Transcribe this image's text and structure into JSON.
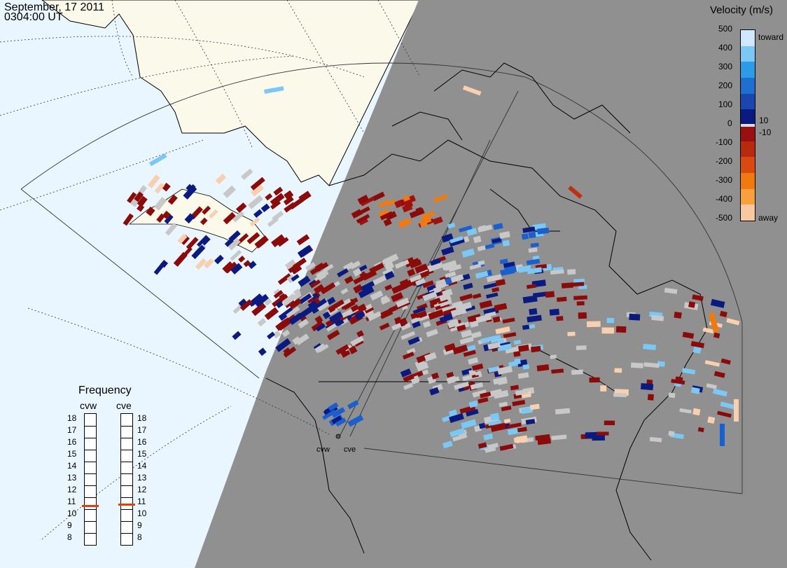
{
  "header": {
    "date": "September, 17 2011",
    "time": "0304:00 UT"
  },
  "velocity_legend": {
    "title": "Velocity (m/s)",
    "ticks": [
      "500",
      "400",
      "300",
      "200",
      "100",
      "10",
      "0",
      "-10",
      "-100",
      "-200",
      "-300",
      "-400",
      "-500"
    ],
    "toward_label": "toward",
    "away_label": "away",
    "colors": [
      "#cfe8ff",
      "#7cc8f5",
      "#2e9be6",
      "#1e6fd0",
      "#1a46b0",
      "#0a1a80",
      "#9a1010",
      "#b82a10",
      "#d94a10",
      "#f07a10",
      "#f8a040",
      "#f8c8a0"
    ]
  },
  "frequency_legend": {
    "title": "Frequency",
    "radars": [
      {
        "name": "cvw",
        "value_mhz": 10.8
      },
      {
        "name": "cve",
        "value_mhz": 10.9
      }
    ],
    "scale": [
      "18",
      "17",
      "16",
      "15",
      "14",
      "13",
      "12",
      "11",
      "10",
      "9",
      "8"
    ],
    "marker_color": "#e04010"
  },
  "sites": {
    "west": "cvw",
    "east": "cve"
  },
  "colors": {
    "ocean": "#eaf6ff",
    "land": "#fbf9ea",
    "night": "#909090",
    "ground_scatter": "#c8c8c8",
    "grid": "#222222"
  }
}
